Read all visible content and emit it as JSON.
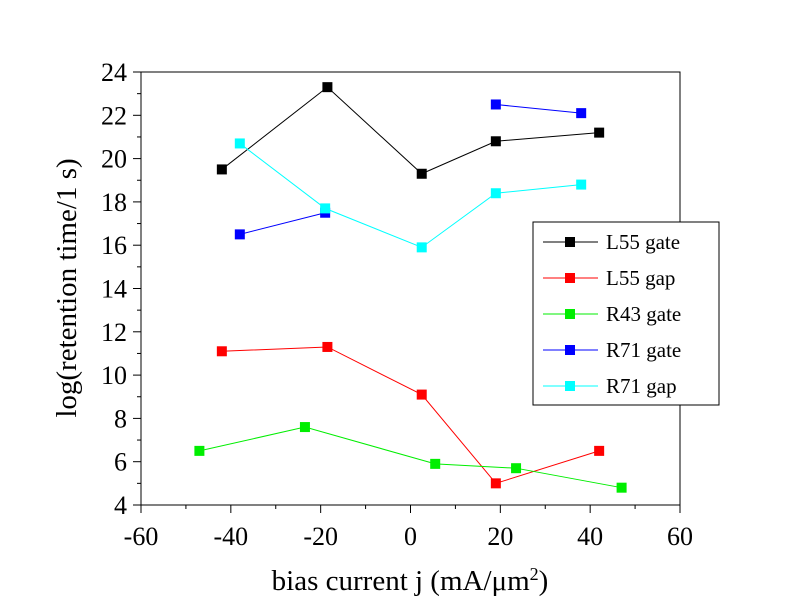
{
  "chart_data": {
    "type": "line",
    "title": "",
    "xlabel": "bias current j (mA/μm",
    "xlabel_superscript": "2",
    "xlabel_suffix": ")",
    "ylabel": "log(retention time/1 s)",
    "xlim": [
      -60,
      60
    ],
    "ylim": [
      4,
      24
    ],
    "x_ticks": [
      "-60",
      "-40",
      "-20",
      "0",
      "20",
      "40",
      "60"
    ],
    "y_ticks": [
      "4",
      "6",
      "8",
      "10",
      "12",
      "14",
      "16",
      "18",
      "20",
      "22",
      "24"
    ],
    "grid": false,
    "legend_position": "right",
    "series": [
      {
        "name": "L55 gate",
        "color": "#000000",
        "marker": "square",
        "points": [
          [
            -42,
            19.5
          ],
          [
            -18.5,
            23.3
          ],
          [
            2.5,
            19.3
          ],
          [
            19,
            20.8
          ],
          [
            42,
            21.2
          ]
        ]
      },
      {
        "name": "L55 gap",
        "color": "#ff0000",
        "marker": "square",
        "points": [
          [
            -42,
            11.1
          ],
          [
            -18.5,
            11.3
          ],
          [
            2.5,
            9.1
          ],
          [
            19,
            5.0
          ],
          [
            42,
            6.5
          ]
        ]
      },
      {
        "name": "R43 gate",
        "color": "#00ee00",
        "marker": "square",
        "points": [
          [
            -47,
            6.5
          ],
          [
            -23.5,
            7.6
          ],
          [
            5.5,
            5.9
          ],
          [
            23.5,
            5.7
          ],
          [
            47,
            4.8
          ]
        ]
      },
      {
        "name": "R71 gate",
        "color": "#0000ff",
        "marker": "square",
        "points": [
          [
            -38,
            16.5
          ],
          [
            -19,
            17.5
          ],
          null,
          [
            19,
            22.5
          ],
          [
            38,
            22.1
          ]
        ]
      },
      {
        "name": "R71 gap",
        "color": "#00ffff",
        "marker": "square",
        "points": [
          [
            -38,
            20.7
          ],
          [
            -19,
            17.7
          ],
          [
            2.5,
            15.9
          ],
          [
            19,
            18.4
          ],
          [
            38,
            18.8
          ]
        ]
      }
    ]
  }
}
